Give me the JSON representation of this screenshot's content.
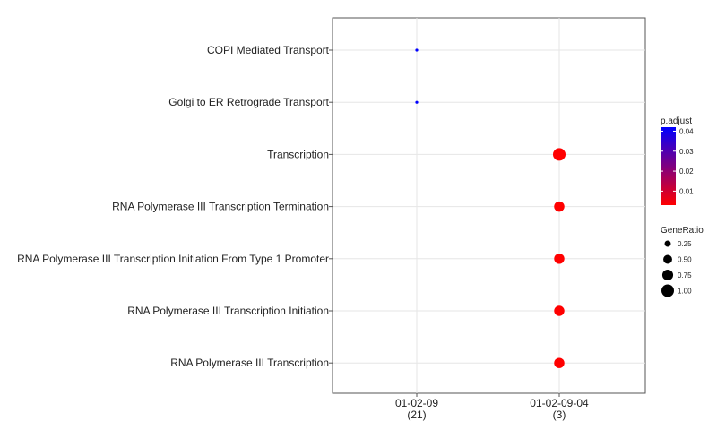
{
  "chart_data": {
    "type": "scatter",
    "x_categories": [
      {
        "label": "01-02-09",
        "count": "(21)"
      },
      {
        "label": "01-02-09-04",
        "count": "(3)"
      }
    ],
    "y_categories": [
      "COPI Mediated Transport",
      "Golgi to ER Retrograde Transport",
      "Transcription",
      "RNA Polymerase III Transcription Termination",
      "RNA Polymerase III Transcription Initiation From Type 1 Promoter",
      "RNA Polymerase III Transcription Initiation",
      "RNA Polymerase III Transcription"
    ],
    "points": [
      {
        "x": "01-02-09",
        "y": "COPI Mediated Transport",
        "gene_ratio": 0.05,
        "p_adjust": 0.042
      },
      {
        "x": "01-02-09",
        "y": "Golgi to ER Retrograde Transport",
        "gene_ratio": 0.05,
        "p_adjust": 0.042
      },
      {
        "x": "01-02-09-04",
        "y": "Transcription",
        "gene_ratio": 1.0,
        "p_adjust": 0.003
      },
      {
        "x": "01-02-09-04",
        "y": "RNA Polymerase III Transcription Termination",
        "gene_ratio": 0.67,
        "p_adjust": 0.003
      },
      {
        "x": "01-02-09-04",
        "y": "RNA Polymerase III Transcription Initiation From Type 1 Promoter",
        "gene_ratio": 0.67,
        "p_adjust": 0.003
      },
      {
        "x": "01-02-09-04",
        "y": "RNA Polymerase III Transcription Initiation",
        "gene_ratio": 0.67,
        "p_adjust": 0.003
      },
      {
        "x": "01-02-09-04",
        "y": "RNA Polymerase III Transcription",
        "gene_ratio": 0.67,
        "p_adjust": 0.003
      }
    ],
    "color_legend": {
      "title": "p.adjust",
      "ticks": [
        "0.04",
        "0.03",
        "0.02",
        "0.01"
      ],
      "tick_values": [
        0.04,
        0.03,
        0.02,
        0.01
      ],
      "range": [
        0.003,
        0.042
      ],
      "low_color": "#ff0000",
      "high_color": "#0000ff"
    },
    "size_legend": {
      "title": "GeneRatio",
      "ticks": [
        "0.25",
        "0.50",
        "0.75",
        "1.00"
      ],
      "tick_values": [
        0.25,
        0.5,
        0.75,
        1.0
      ]
    },
    "grid": true,
    "legend_position": "right"
  }
}
